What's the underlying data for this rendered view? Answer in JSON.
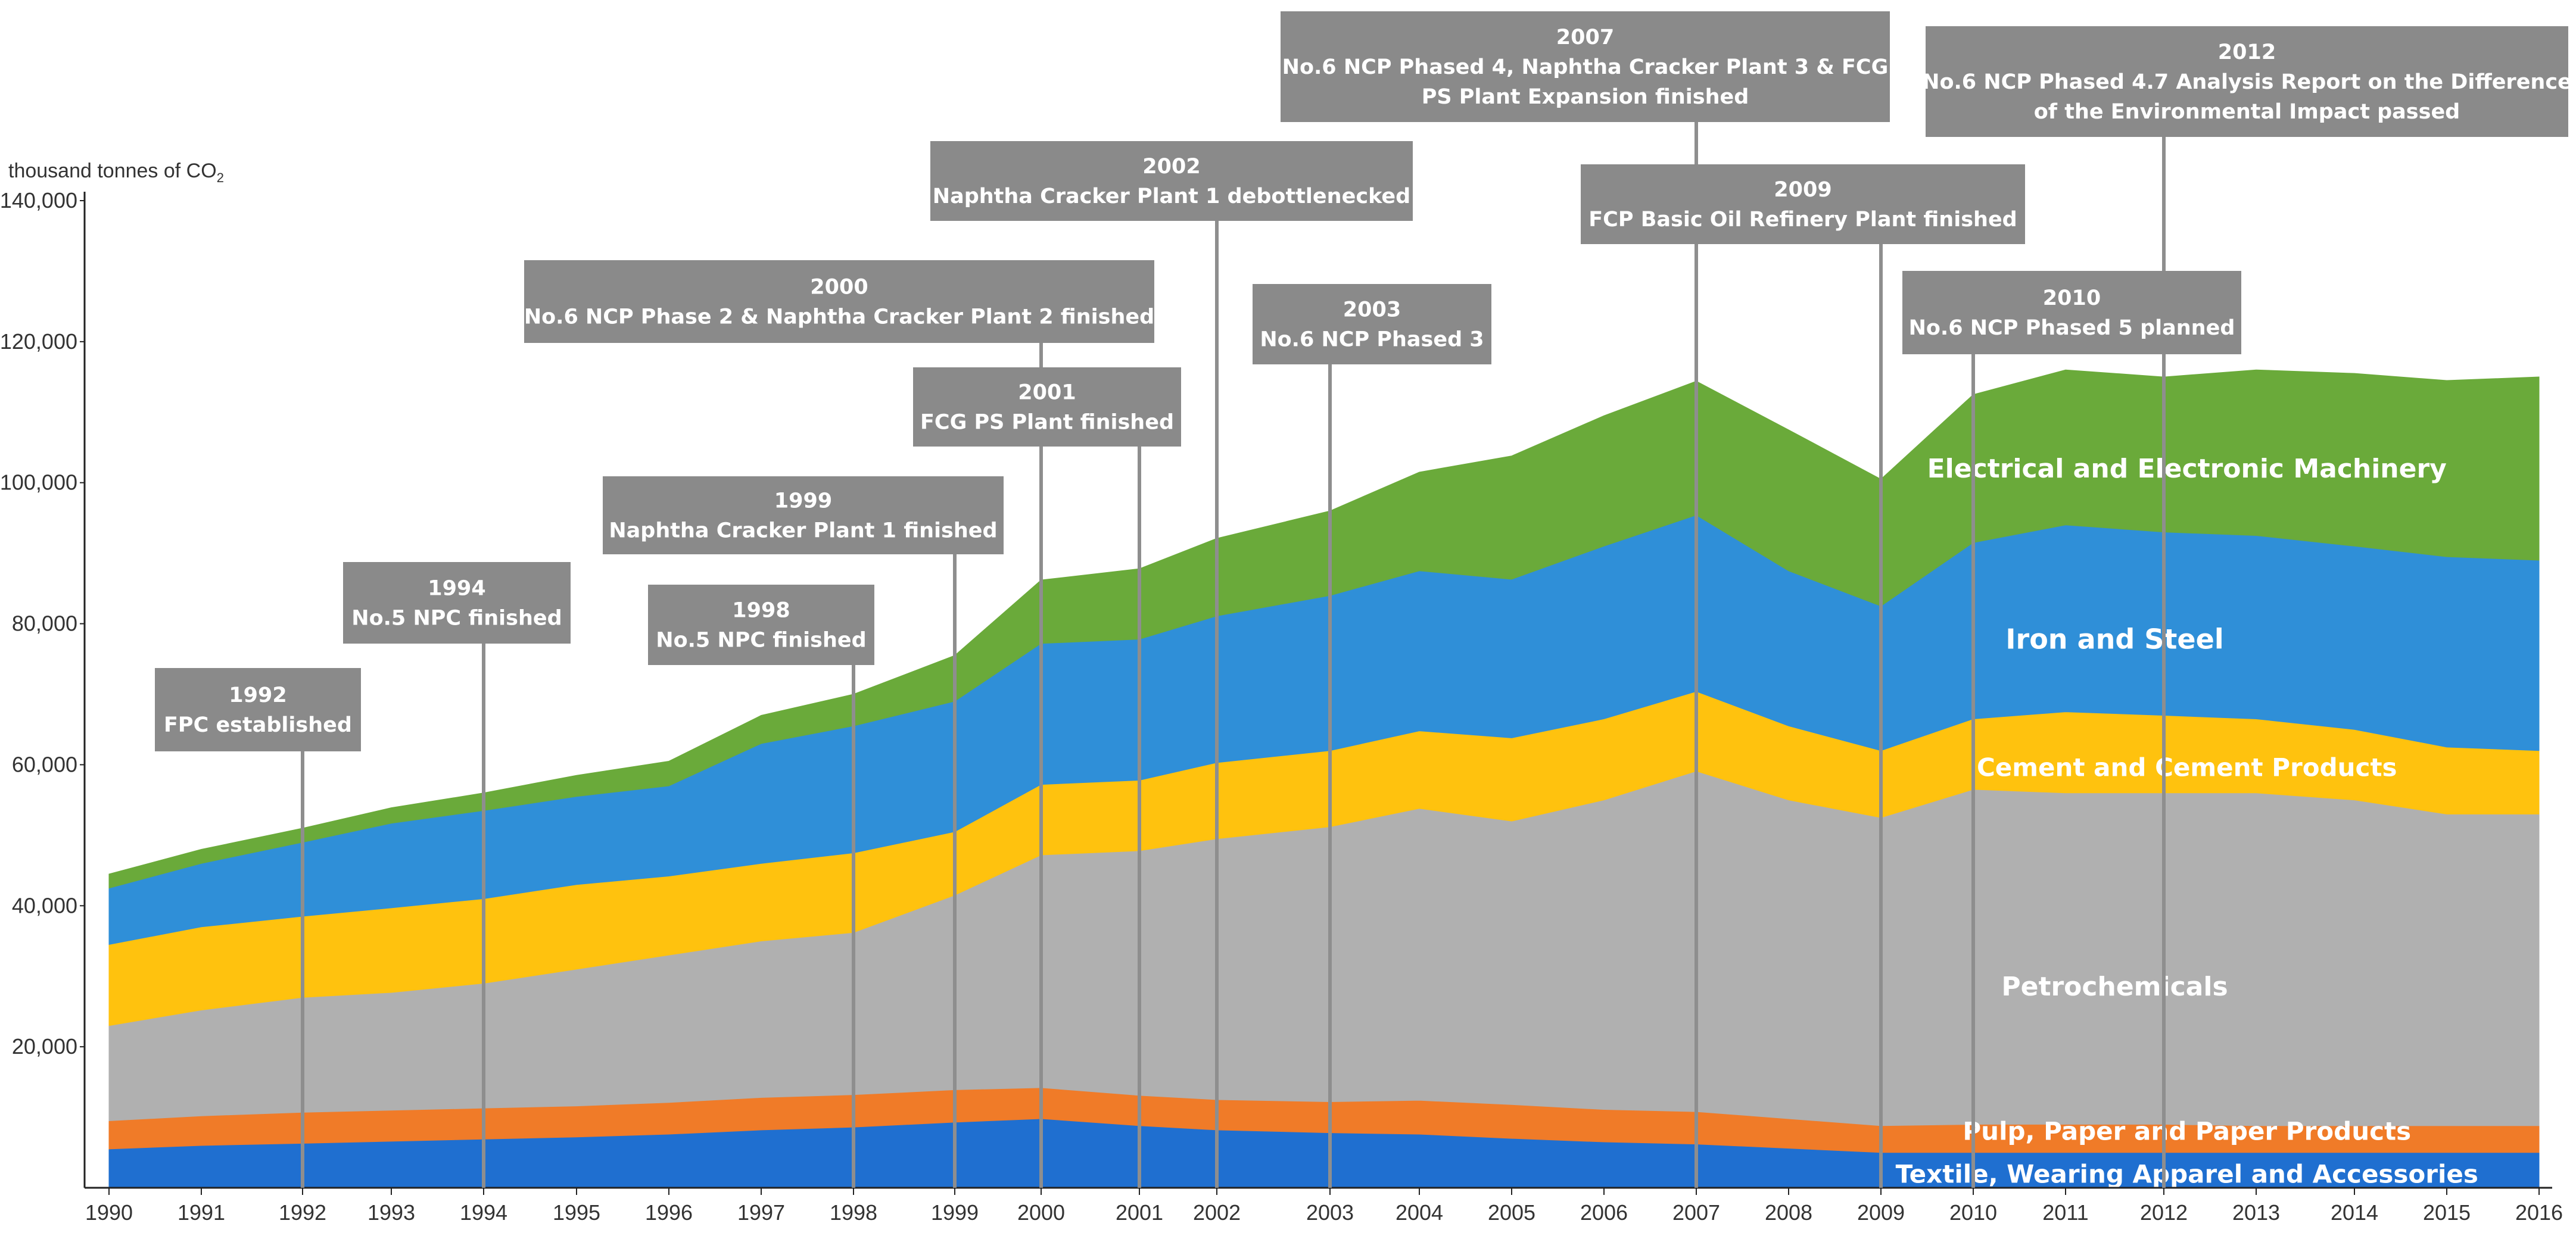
{
  "chart_data": {
    "type": "area",
    "stacked": true,
    "ylabel": "thousand tonnes of CO",
    "ylabel_subscript": "2",
    "ylim": [
      0,
      140000
    ],
    "y_ticks": [
      "20,000",
      "40,000",
      "60,000",
      "80,000",
      "100,000",
      "120,000",
      "140,000"
    ],
    "y_tick_values": [
      20000,
      40000,
      60000,
      80000,
      100000,
      120000,
      140000
    ],
    "x": [
      1990,
      1991,
      1992,
      1993,
      1994,
      1995,
      1996,
      1997,
      1998,
      1999,
      2000,
      2001,
      2002,
      2003,
      2004,
      2005,
      2006,
      2007,
      2008,
      2009,
      2010,
      2011,
      2012,
      2013,
      2014,
      2015,
      2016
    ],
    "x_labels": [
      "1990",
      "1991",
      "1992",
      "1993",
      "1994",
      "1995",
      "1996",
      "1997",
      "1998",
      "1999",
      "2000",
      "2001",
      "2002",
      "2003",
      "2004",
      "2005",
      "2006",
      "2007",
      "2008",
      "2009",
      "2010",
      "2011",
      "2012",
      "2013",
      "2014",
      "2015",
      "2016"
    ],
    "series": [
      {
        "name": "Textile, Wearing Apparel and Accessories",
        "color": "#1f6fd0",
        "values": [
          5500,
          6000,
          6300,
          6600,
          6900,
          7200,
          7600,
          8200,
          8600,
          9300,
          9800,
          8800,
          8200,
          7800,
          7600,
          7000,
          6500,
          6200,
          5600,
          5000,
          5000,
          5000,
          5000,
          5000,
          5000,
          5000,
          5000
        ]
      },
      {
        "name": "Pulp, Paper and Paper Products",
        "color": "#f07b28",
        "values": [
          4000,
          4200,
          4400,
          4400,
          4400,
          4400,
          4500,
          4600,
          4600,
          4600,
          4400,
          4300,
          4300,
          4400,
          4800,
          4800,
          4600,
          4600,
          4200,
          3800,
          4000,
          4000,
          4000,
          3800,
          3800,
          3800,
          3800
        ]
      },
      {
        "name": "Petrochemicals",
        "color": "#b0b0b0",
        "values": [
          13500,
          15000,
          16300,
          16700,
          17700,
          19400,
          20900,
          22200,
          23000,
          27600,
          33000,
          34700,
          37000,
          39000,
          41400,
          40200,
          43900,
          48300,
          45200,
          43700,
          47500,
          47000,
          47000,
          47200,
          46200,
          44200,
          44200
        ]
      },
      {
        "name": "Cement and Cement Products",
        "color": "#ffc20e",
        "values": [
          11500,
          11800,
          11500,
          12000,
          12000,
          12000,
          11200,
          11000,
          11300,
          9000,
          10000,
          10000,
          10800,
          10800,
          11000,
          11800,
          11500,
          11300,
          10500,
          9500,
          10000,
          11500,
          11000,
          10500,
          10000,
          9500,
          9000
        ]
      },
      {
        "name": "Iron and Steel",
        "color": "#2f8fd8",
        "values": [
          8000,
          9000,
          10500,
          12000,
          12500,
          12500,
          12800,
          17000,
          18000,
          18500,
          20000,
          20000,
          20800,
          22000,
          22700,
          22500,
          24500,
          25000,
          22000,
          20500,
          25000,
          26500,
          26000,
          26000,
          26000,
          27000,
          27000
        ]
      },
      {
        "name": "Electrical and Electronic Machinery",
        "color": "#6aaa3a",
        "values": [
          2000,
          2000,
          2000,
          2200,
          2500,
          3000,
          3500,
          4000,
          4500,
          6500,
          9000,
          10000,
          11000,
          12000,
          14000,
          17500,
          18500,
          19000,
          20000,
          18000,
          21000,
          22000,
          22000,
          23500,
          24500,
          25000,
          26000
        ]
      }
    ],
    "milestones": [
      {
        "year": 1992,
        "year_label": "1992",
        "lines": [
          "FPC established"
        ]
      },
      {
        "year": 1994,
        "year_label": "1994",
        "lines": [
          "No.5 NPC finished"
        ]
      },
      {
        "year": 1998,
        "year_label": "1998",
        "lines": [
          "No.5 NPC finished"
        ]
      },
      {
        "year": 1999,
        "year_label": "1999",
        "lines": [
          "Naphtha Cracker Plant 1 finished"
        ]
      },
      {
        "year": 2000,
        "year_label": "2000",
        "lines": [
          "No.6 NCP Phase 2 & Naphtha Cracker Plant 2 finished"
        ]
      },
      {
        "year": 2001,
        "year_label": "2001",
        "lines": [
          "FCG PS Plant finished"
        ]
      },
      {
        "year": 2002,
        "year_label": "2002",
        "lines": [
          "Naphtha Cracker Plant 1 debottlenecked"
        ]
      },
      {
        "year": 2003,
        "year_label": "2003",
        "lines": [
          "No.6 NCP Phased 3"
        ]
      },
      {
        "year": 2007,
        "year_label": "2007",
        "lines": [
          "No.6 NCP Phased 4,  Naphtha Cracker Plant 3 &  FCG",
          "PS Plant Expansion finished"
        ]
      },
      {
        "year": 2009,
        "year_label": "2009",
        "lines": [
          "FCP Basic Oil Refinery  Plant finished"
        ]
      },
      {
        "year": 2010,
        "year_label": "2010",
        "lines": [
          "No.6 NCP Phased 5 planned"
        ]
      },
      {
        "year": 2012,
        "year_label": "2012",
        "lines": [
          "No.6 NCP Phased 4.7 Analysis Report on the Difference",
          "of the Environmental Impact passed"
        ]
      }
    ]
  }
}
